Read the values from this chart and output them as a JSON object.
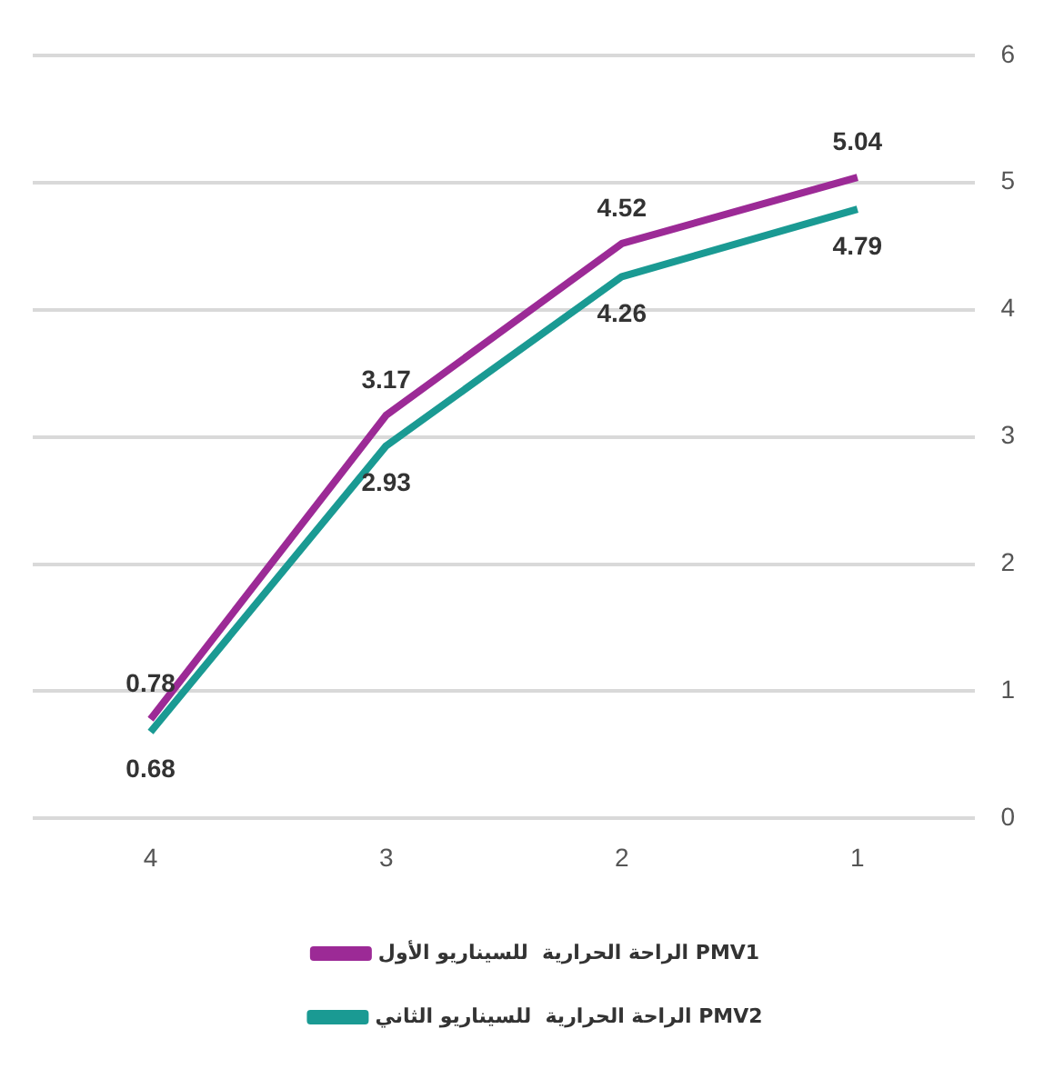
{
  "chart_data": {
    "type": "line",
    "categories": [
      "4",
      "3",
      "2",
      "1"
    ],
    "series": [
      {
        "name": "الراحة الحرارية  للسيناريو الأول PMV1",
        "color": "#9c2a96",
        "values": [
          0.78,
          3.17,
          4.52,
          5.04
        ]
      },
      {
        "name": "الراحة الحرارية  للسيناريو الثاني PMV2",
        "color": "#1a9a93",
        "values": [
          0.68,
          2.93,
          4.26,
          4.79
        ]
      }
    ],
    "ylim": [
      0,
      6
    ],
    "yticks": [
      0,
      1,
      2,
      3,
      4,
      5,
      6
    ],
    "grid": "y",
    "legend": "bottom",
    "marker": "none",
    "line_style": "solid",
    "data_labels": true
  }
}
